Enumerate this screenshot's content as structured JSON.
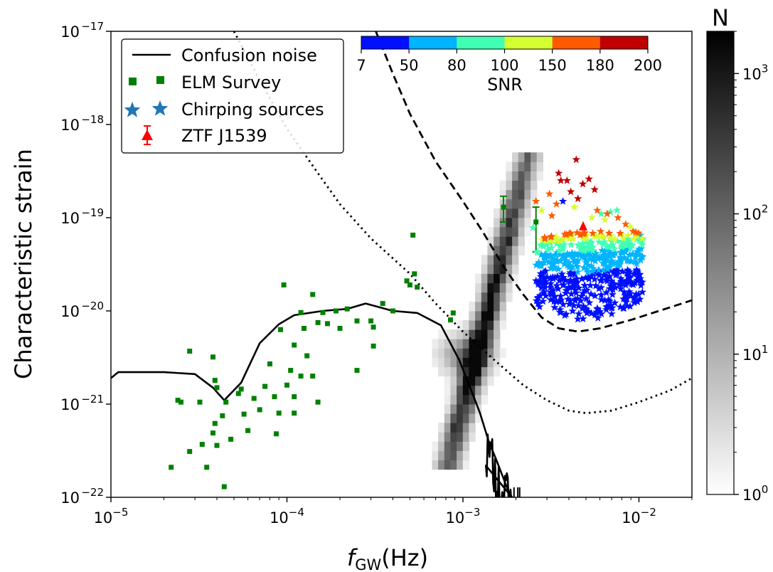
{
  "chart_data": {
    "type": "scatter",
    "xlabel_main": "f",
    "xlabel_sub": "GW",
    "xlabel_unit": "(Hz)",
    "ylabel": "Characteristic strain",
    "xscale": "log",
    "yscale": "log",
    "xlim": [
      1e-05,
      0.02
    ],
    "ylim": [
      1e-22,
      1e-17
    ],
    "x_ticks": [
      {
        "value": 1e-05,
        "base": "10",
        "exp": "−5"
      },
      {
        "value": 0.0001,
        "base": "10",
        "exp": "−4"
      },
      {
        "value": 0.001,
        "base": "10",
        "exp": "−3"
      },
      {
        "value": 0.01,
        "base": "10",
        "exp": "−2"
      }
    ],
    "y_ticks": [
      {
        "value": 1e-22,
        "base": "10",
        "exp": "−22"
      },
      {
        "value": 1e-21,
        "base": "10",
        "exp": "−21"
      },
      {
        "value": 1e-20,
        "base": "10",
        "exp": "−20"
      },
      {
        "value": 1e-19,
        "base": "10",
        "exp": "−19"
      },
      {
        "value": 1e-18,
        "base": "10",
        "exp": "−18"
      },
      {
        "value": 1e-17,
        "base": "10",
        "exp": "−17"
      }
    ],
    "legend": {
      "position": "top-left",
      "entries": [
        "Confusion noise",
        "ELM Survey",
        "Chirping sources",
        "ZTF J1539"
      ]
    },
    "snr_colorbar": {
      "label": "SNR",
      "ticks": [
        "7",
        "50",
        "80",
        "100",
        "150",
        "180",
        "200"
      ],
      "colors": [
        "#0010ff",
        "#00b4ff",
        "#40ffb4",
        "#d4ff30",
        "#ff5a00",
        "#c00000"
      ]
    },
    "density_colorbar": {
      "title": "N",
      "scale": "log",
      "range": [
        1,
        2000
      ],
      "ticks": [
        {
          "value": 1,
          "base": "10",
          "exp": "0"
        },
        {
          "value": 10,
          "base": "10",
          "exp": "1"
        },
        {
          "value": 100,
          "base": "10",
          "exp": "2"
        },
        {
          "value": 1000,
          "base": "10",
          "exp": "3"
        }
      ]
    },
    "series": [
      {
        "name": "Confusion noise",
        "style": "solid",
        "color": "#000000",
        "points": [
          [
            1e-05,
            1.9e-21
          ],
          [
            1.1e-05,
            2.2e-21
          ],
          [
            2e-05,
            2.2e-21
          ],
          [
            3e-05,
            2.1e-21
          ],
          [
            3.8e-05,
            1.5e-21
          ],
          [
            4.4e-05,
            1.1e-21
          ],
          [
            5.5e-05,
            1.7e-21
          ],
          [
            7e-05,
            4.5e-21
          ],
          [
            9e-05,
            7.2e-21
          ],
          [
            0.00011,
            9e-21
          ],
          [
            0.00016,
            1e-20
          ],
          [
            0.00022,
            1.05e-20
          ],
          [
            0.00028,
            1.2e-20
          ],
          [
            0.0004,
            1e-20
          ],
          [
            0.00055,
            9.5e-21
          ],
          [
            0.00075,
            7e-21
          ],
          [
            0.00095,
            3e-21
          ],
          [
            0.0011,
            1.5e-21
          ],
          [
            0.00125,
            8e-22
          ],
          [
            0.0014,
            4e-22
          ],
          [
            0.00155,
            2.5e-22
          ],
          [
            0.0017,
            1.6e-22
          ],
          [
            0.0018,
            1.2e-22
          ],
          [
            0.0019,
            1e-22
          ]
        ]
      },
      {
        "name": "",
        "style": "dashed",
        "color": "#000000",
        "points": [
          [
            0.00032,
            1e-17
          ],
          [
            0.0004,
            3.5e-18
          ],
          [
            0.0005,
            1.3e-18
          ],
          [
            0.0007,
            4e-19
          ],
          [
            0.001,
            1.5e-19
          ],
          [
            0.0013,
            7e-20
          ],
          [
            0.0017,
            3e-20
          ],
          [
            0.0022,
            1.5e-20
          ],
          [
            0.0028,
            8.5e-21
          ],
          [
            0.0035,
            6.5e-21
          ],
          [
            0.0045,
            6e-21
          ],
          [
            0.006,
            6.5e-21
          ],
          [
            0.009,
            8e-21
          ],
          [
            0.013,
            1e-20
          ],
          [
            0.02,
            1.3e-20
          ]
        ]
      },
      {
        "name": "",
        "style": "dotted",
        "color": "#000000",
        "points": [
          [
            5e-05,
            1e-17
          ],
          [
            7e-05,
            3e-18
          ],
          [
            0.0001,
            9e-19
          ],
          [
            0.00015,
            3e-19
          ],
          [
            0.0002,
            1.4e-19
          ],
          [
            0.0003,
            6e-20
          ],
          [
            0.0005,
            2.5e-20
          ],
          [
            0.0007,
            1.2e-20
          ],
          [
            0.001,
            6e-21
          ],
          [
            0.0015,
            3e-21
          ],
          [
            0.0022,
            1.6e-21
          ],
          [
            0.003,
            1.1e-21
          ],
          [
            0.004,
            8.5e-22
          ],
          [
            0.005,
            8e-22
          ],
          [
            0.007,
            8.5e-22
          ],
          [
            0.01,
            1.05e-21
          ],
          [
            0.015,
            1.4e-21
          ],
          [
            0.02,
            1.9e-21
          ]
        ]
      },
      {
        "name": "ELM Survey",
        "marker": "square",
        "color": "#008000",
        "points": [
          [
            2.2e-05,
            2.1e-22
          ],
          [
            2.4e-05,
            1.1e-21
          ],
          [
            2.5e-05,
            1.05e-21
          ],
          [
            2.8e-05,
            3.7e-21
          ],
          [
            2.8e-05,
            3.1e-22
          ],
          [
            3.2e-05,
            1.05e-21
          ],
          [
            3.3e-05,
            3.7e-22
          ],
          [
            3.5e-05,
            2.1e-22
          ],
          [
            3.8e-05,
            3.2e-21
          ],
          [
            3.8e-05,
            4.9e-22
          ],
          [
            3.9e-05,
            1.8e-21
          ],
          [
            3.9e-05,
            6.2e-22
          ],
          [
            4e-05,
            1.5e-21
          ],
          [
            4e-05,
            3.6e-22
          ],
          [
            4.3e-05,
            7.5e-22
          ],
          [
            4.4e-05,
            1.3e-22
          ],
          [
            4.5e-05,
            1.05e-21
          ],
          [
            4.8e-05,
            4.2e-22
          ],
          [
            5.3e-05,
            1.3e-21
          ],
          [
            5.5e-05,
            1.45e-21
          ],
          [
            5.7e-05,
            7.8e-22
          ],
          [
            6e-05,
            5.2e-22
          ],
          [
            6.5e-05,
            1.15e-21
          ],
          [
            7e-05,
            8.7e-22
          ],
          [
            7.5e-05,
            1.55e-21
          ],
          [
            8e-05,
            2.7e-21
          ],
          [
            8.5e-05,
            1.2e-21
          ],
          [
            8.7e-05,
            4.8e-22
          ],
          [
            9e-05,
            8e-22
          ],
          [
            9.2e-05,
            6.3e-21
          ],
          [
            9.6e-05,
            1.9e-20
          ],
          [
            0.0001,
            1.6e-21
          ],
          [
            0.000105,
            2.3e-21
          ],
          [
            0.00011,
            1.2e-21
          ],
          [
            0.00011,
            8e-22
          ],
          [
            0.00011,
            4.3e-21
          ],
          [
            0.00012,
            2e-21
          ],
          [
            0.00012,
            9.6e-21
          ],
          [
            0.000125,
            6.5e-21
          ],
          [
            0.00013,
            3.3e-21
          ],
          [
            0.00014,
            1.5e-20
          ],
          [
            0.00014,
            2e-21
          ],
          [
            0.00015,
            1.05e-21
          ],
          [
            0.00015,
            7.5e-21
          ],
          [
            0.00016,
            9.6e-21
          ],
          [
            0.00017,
            7.3e-21
          ],
          [
            0.00019,
            1e-20
          ],
          [
            0.0002,
            6.5e-21
          ],
          [
            0.00022,
            1.05e-20
          ],
          [
            0.00025,
            7.8e-21
          ],
          [
            0.00025,
            2.3e-21
          ],
          [
            0.0003,
            7.8e-21
          ],
          [
            0.00031,
            6.7e-21
          ],
          [
            0.00031,
            4.2e-21
          ],
          [
            0.00035,
            1.2e-20
          ],
          [
            0.0004,
            1e-20
          ],
          [
            0.00048,
            2.1e-20
          ],
          [
            0.0005,
            1.9e-20
          ],
          [
            0.00052,
            6.5e-20
          ],
          [
            0.00053,
            2.5e-20
          ],
          [
            0.00055,
            1.8e-20
          ],
          [
            0.00085,
            8e-21
          ],
          [
            0.00088,
            9.5e-21
          ]
        ]
      },
      {
        "name": "ZTF J1539",
        "marker": "triangle",
        "color": "#ff0000",
        "points": [
          [
            0.00482,
            8e-20
          ]
        ]
      }
    ],
    "elm_error_bars": [
      {
        "x": 0.0017,
        "y": 1.3e-19,
        "ylo": 9e-20,
        "yhi": 1.7e-19
      },
      {
        "x": 0.0026,
        "y": 9e-20,
        "ylo": 4.3e-20,
        "yhi": 1.3e-19
      }
    ]
  }
}
